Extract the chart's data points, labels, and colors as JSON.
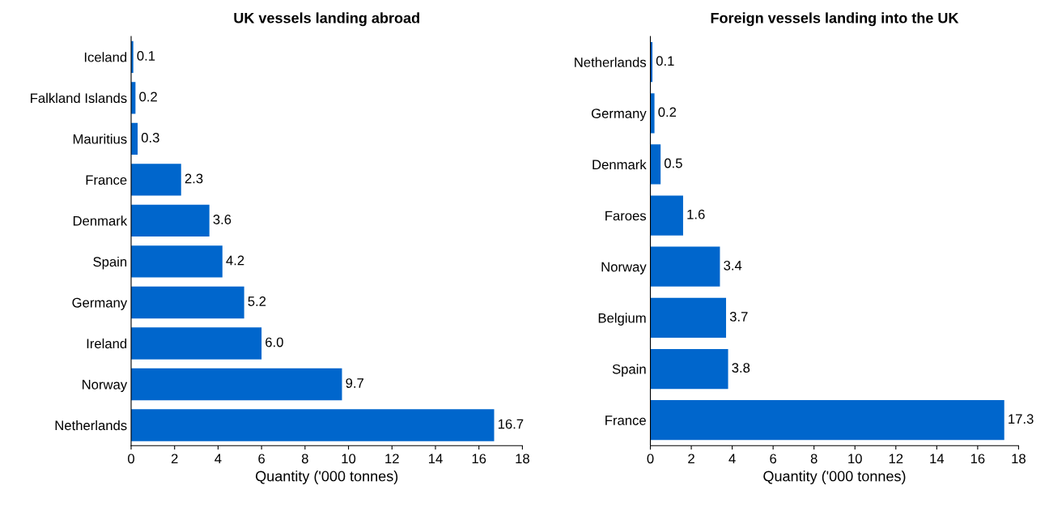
{
  "chart_data": [
    {
      "type": "bar",
      "orientation": "horizontal",
      "title": "UK vessels landing abroad",
      "xlabel": "Quantity ('000 tonnes)",
      "categories": [
        "Iceland",
        "Falkland Islands",
        "Mauritius",
        "France",
        "Denmark",
        "Spain",
        "Germany",
        "Ireland",
        "Norway",
        "Netherlands"
      ],
      "values": [
        0.1,
        0.2,
        0.3,
        2.3,
        3.6,
        4.2,
        5.2,
        6.0,
        9.7,
        16.7
      ],
      "value_labels": [
        "0.1",
        "0.2",
        "0.3",
        "2.3",
        "3.6",
        "4.2",
        "5.2",
        "6.0",
        "9.7",
        "16.7"
      ],
      "color": "#0066cc",
      "xlim": [
        0,
        18
      ],
      "xticks": [
        0,
        2,
        4,
        6,
        8,
        10,
        12,
        14,
        16,
        18
      ],
      "grid": false,
      "legend": false
    },
    {
      "type": "bar",
      "orientation": "horizontal",
      "title": "Foreign vessels landing into the UK",
      "xlabel": "Quantity ('000 tonnes)",
      "categories": [
        "Netherlands",
        "Germany",
        "Denmark",
        "Faroes",
        "Norway",
        "Belgium",
        "Spain",
        "France"
      ],
      "values": [
        0.1,
        0.2,
        0.5,
        1.6,
        3.4,
        3.7,
        3.8,
        17.3
      ],
      "value_labels": [
        "0.1",
        "0.2",
        "0.5",
        "1.6",
        "3.4",
        "3.7",
        "3.8",
        "17.3"
      ],
      "color": "#0066cc",
      "xlim": [
        0,
        18
      ],
      "xticks": [
        0,
        2,
        4,
        6,
        8,
        10,
        12,
        14,
        16,
        18
      ],
      "grid": false,
      "legend": false
    }
  ]
}
